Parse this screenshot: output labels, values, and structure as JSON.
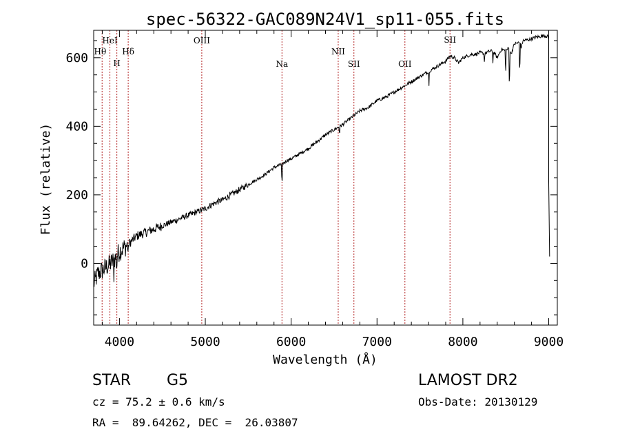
{
  "chart_data": {
    "type": "line",
    "title": "spec-56322-GAC089N24V1_sp11-055.fits",
    "xlabel": "Wavelength (Å)",
    "ylabel": "Flux (relative)",
    "xlim": [
      3700,
      9100
    ],
    "ylim": [
      -180,
      680
    ],
    "xticks": [
      "4000",
      "5000",
      "6000",
      "7000",
      "8000",
      "9000"
    ],
    "yticks": [
      "0",
      "200",
      "400",
      "600"
    ],
    "grid": false,
    "line_color": "#000000",
    "marker_color": "#b22222",
    "series": [
      {
        "x": [
          3700,
          3750,
          3800,
          3850,
          3900,
          3950,
          4000,
          4050,
          4100,
          4200,
          4300,
          4400,
          4500,
          4600,
          4700,
          4800,
          4900,
          5000,
          5100,
          5200,
          5300,
          5400,
          5500,
          5600,
          5700,
          5800,
          5900,
          5950,
          6000,
          6100,
          6200,
          6300,
          6400,
          6500,
          6600,
          6700,
          6800,
          6900,
          7000,
          7100,
          7200,
          7300,
          7400,
          7500,
          7600,
          7700,
          7800,
          7850,
          7900,
          7950,
          8000,
          8050,
          8100,
          8150,
          8200,
          8250,
          8300,
          8350,
          8400,
          8450,
          8500,
          8542,
          8560,
          8600,
          8662,
          8680,
          8700,
          8750,
          8800,
          8850,
          8900,
          8950,
          9000,
          9010
        ],
        "y": [
          -60,
          -30,
          -20,
          -10,
          0,
          15,
          35,
          45,
          55,
          80,
          90,
          100,
          110,
          120,
          130,
          140,
          150,
          160,
          175,
          185,
          200,
          215,
          230,
          245,
          260,
          280,
          290,
          300,
          305,
          320,
          335,
          355,
          375,
          390,
          405,
          425,
          445,
          455,
          475,
          485,
          500,
          515,
          530,
          545,
          560,
          575,
          590,
          605,
          600,
          585,
          600,
          605,
          610,
          610,
          615,
          612,
          618,
          620,
          600,
          625,
          620,
          630,
          610,
          640,
          645,
          630,
          650,
          652,
          655,
          660,
          662,
          665,
          660,
          20
        ]
      }
    ],
    "lines": [
      {
        "label": "Hθ",
        "x": 3798
      },
      {
        "label": "HeI",
        "x": 3889
      },
      {
        "label": "H",
        "x": 3970
      },
      {
        "label": "Hδ",
        "x": 4102
      },
      {
        "label": "OIII",
        "x": 4959
      },
      {
        "label": "Na",
        "x": 5893
      },
      {
        "label": "NII",
        "x": 6548
      },
      {
        "label": "SII",
        "x": 6731
      },
      {
        "label": "OII",
        "x": 7325
      },
      {
        "label": "SII",
        "x": 7850
      }
    ]
  },
  "info": {
    "class": "STAR",
    "subclass": "G5",
    "survey": "LAMOST DR2",
    "cz": "cz = 75.2 ± 0.6 km/s",
    "obsdate": "Obs-Date: 20130129",
    "radec": "RA =  89.64262, DEC =  26.03807"
  }
}
